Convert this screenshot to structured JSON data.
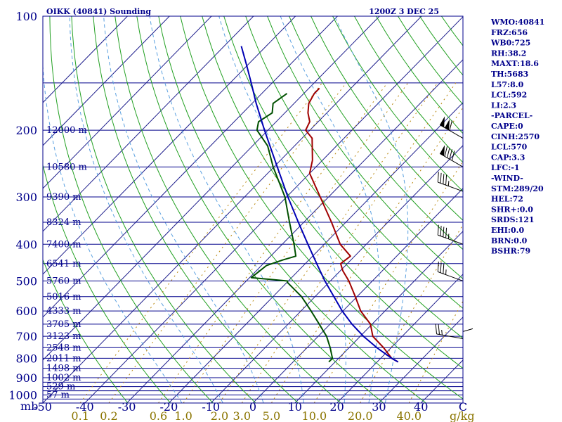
{
  "colors": {
    "frame": "#00008b",
    "isobar": "#00008b",
    "isotherm": "#1e1e8c",
    "dry_adiabat": "#22a022",
    "moist_adiabat": "#5aa0e0",
    "mixing_ratio": "#b8860b",
    "temperature": "#a00000",
    "dewpoint": "#005000",
    "parcel": "#0000b4",
    "wind": "#000000",
    "mixing_label": "#8b7500",
    "text": "#00008b"
  },
  "chart_data": {
    "type": "skew-t",
    "title": "OIKK (40841) Sounding",
    "datetime": "1200Z  3 DEC 25",
    "y_axis_unit": "mb",
    "pressure_range": [
      1050,
      100
    ],
    "pressure_tick_labels": [
      {
        "p": 100,
        "label": "100"
      },
      {
        "p": 200,
        "label": "200"
      },
      {
        "p": 300,
        "label": "300"
      },
      {
        "p": 400,
        "label": "400"
      },
      {
        "p": 500,
        "label": "500"
      },
      {
        "p": 600,
        "label": "600"
      },
      {
        "p": 700,
        "label": "700"
      },
      {
        "p": 800,
        "label": "800"
      },
      {
        "p": 900,
        "label": "900"
      },
      {
        "p": 1000,
        "label": "1000"
      }
    ],
    "isobars": [
      150,
      200,
      250,
      300,
      350,
      400,
      450,
      500,
      550,
      600,
      650,
      700,
      750,
      800,
      850,
      900,
      925,
      950,
      975,
      1000,
      1025
    ],
    "temperature_range_c": [
      -50,
      50
    ],
    "temperature_tick_labels": [
      -50,
      -40,
      -30,
      -20,
      -10,
      0,
      10,
      20,
      30,
      40,
      50
    ],
    "temperature_tick_texts": [
      "-50",
      "-40",
      "-30",
      "-20",
      "-10",
      "0",
      "10",
      "20",
      "30",
      "40",
      "C"
    ],
    "isotherm_start_temps_c": [
      -120,
      -110,
      -100,
      -90,
      -80,
      -70,
      -60,
      -50,
      -40,
      -30,
      -20,
      -10,
      0,
      10,
      20,
      30,
      40,
      50
    ],
    "dry_adiabat_thetas_k": [
      240,
      250,
      260,
      270,
      280,
      290,
      300,
      310,
      320,
      330,
      340,
      350,
      360,
      370,
      380,
      390,
      400,
      410,
      420,
      430,
      440,
      450,
      460,
      470,
      480,
      490,
      500
    ],
    "moist_adiabat_thetaw_c": [
      -20,
      -10,
      0,
      10,
      20,
      26,
      30
    ],
    "mixing_ratio_lines_gkg": [
      0.1,
      0.2,
      0.6,
      1.0,
      2.0,
      3.0,
      5.0,
      10.0,
      20.0,
      40.0
    ],
    "mixing_ratio_labels": [
      {
        "w": 0.1,
        "label": "0.1"
      },
      {
        "w": 0.2,
        "label": "0.2"
      },
      {
        "w": 0.6,
        "label": "0.6"
      },
      {
        "w": 1.0,
        "label": "1.0"
      },
      {
        "w": 2.0,
        "label": "2.0"
      },
      {
        "w": 3.0,
        "label": "3.0"
      },
      {
        "w": 5.0,
        "label": "5.0"
      },
      {
        "w": 10.0,
        "label": "10.0"
      },
      {
        "w": 20.0,
        "label": "20.0"
      },
      {
        "w": 40.0,
        "label": "40.0"
      }
    ],
    "mixing_ratio_unit": "g/kg",
    "height_labels": [
      {
        "p": 200,
        "text": "12000 m"
      },
      {
        "p": 250,
        "text": "10580 m"
      },
      {
        "p": 300,
        "text": "9390 m"
      },
      {
        "p": 350,
        "text": "8324 m"
      },
      {
        "p": 400,
        "text": "7400 m"
      },
      {
        "p": 450,
        "text": "6541 m"
      },
      {
        "p": 500,
        "text": "5760 m"
      },
      {
        "p": 550,
        "text": "5016 m"
      },
      {
        "p": 600,
        "text": "4333 m"
      },
      {
        "p": 650,
        "text": "3705 m"
      },
      {
        "p": 700,
        "text": "3123 m"
      },
      {
        "p": 750,
        "text": "2548 m"
      },
      {
        "p": 800,
        "text": "2011 m"
      },
      {
        "p": 850,
        "text": "1498 m"
      },
      {
        "p": 900,
        "text": "1002 m"
      },
      {
        "p": 950,
        "text": "529 m"
      },
      {
        "p": 1000,
        "text": "57 m"
      }
    ],
    "series": [
      {
        "name": "temperature",
        "points": [
          {
            "p": 818,
            "t": 25.0
          },
          {
            "p": 800,
            "t": 22.6
          },
          {
            "p": 750,
            "t": 18.2
          },
          {
            "p": 700,
            "t": 13.0
          },
          {
            "p": 650,
            "t": 9.6
          },
          {
            "p": 600,
            "t": 4.2
          },
          {
            "p": 550,
            "t": -0.4
          },
          {
            "p": 500,
            "t": -5.6
          },
          {
            "p": 470,
            "t": -9.4
          },
          {
            "p": 450,
            "t": -11.6
          },
          {
            "p": 430,
            "t": -11.0
          },
          {
            "p": 400,
            "t": -16.2
          },
          {
            "p": 350,
            "t": -23.4
          },
          {
            "p": 300,
            "t": -32.0
          },
          {
            "p": 260,
            "t": -40.0
          },
          {
            "p": 240,
            "t": -42.4
          },
          {
            "p": 210,
            "t": -47.6
          },
          {
            "p": 200,
            "t": -51.0
          },
          {
            "p": 190,
            "t": -52.0
          },
          {
            "p": 180,
            "t": -54.5
          },
          {
            "p": 170,
            "t": -56.5
          },
          {
            "p": 160,
            "t": -57.5
          },
          {
            "p": 155,
            "t": -57.5
          }
        ]
      },
      {
        "name": "dewpoint",
        "points": [
          {
            "p": 818,
            "t": 8.5
          },
          {
            "p": 800,
            "t": 8.5
          },
          {
            "p": 750,
            "t": 5.5
          },
          {
            "p": 700,
            "t": 2.0
          },
          {
            "p": 650,
            "t": -2.6
          },
          {
            "p": 600,
            "t": -7.6
          },
          {
            "p": 550,
            "t": -13.2
          },
          {
            "p": 505,
            "t": -19.8
          },
          {
            "p": 500,
            "t": -20.2
          },
          {
            "p": 490,
            "t": -29.6
          },
          {
            "p": 455,
            "t": -28.8
          },
          {
            "p": 440,
            "t": -26.2
          },
          {
            "p": 430,
            "t": -24.0
          },
          {
            "p": 400,
            "t": -27.2
          },
          {
            "p": 350,
            "t": -33.4
          },
          {
            "p": 300,
            "t": -40.4
          },
          {
            "p": 250,
            "t": -50.2
          },
          {
            "p": 220,
            "t": -56.4
          },
          {
            "p": 200,
            "t": -62.6
          },
          {
            "p": 190,
            "t": -64.2
          },
          {
            "p": 180,
            "t": -63.0
          },
          {
            "p": 170,
            "t": -65.0
          },
          {
            "p": 160,
            "t": -64.0
          }
        ]
      },
      {
        "name": "parcel",
        "points": [
          {
            "p": 818,
            "t": 25.0
          },
          {
            "p": 800,
            "t": 22.6
          },
          {
            "p": 750,
            "t": 16.6
          },
          {
            "p": 700,
            "t": 10.8
          },
          {
            "p": 650,
            "t": 5.2
          },
          {
            "p": 600,
            "t": -0.2
          },
          {
            "p": 550,
            "t": -5.5
          },
          {
            "p": 500,
            "t": -11.3
          },
          {
            "p": 450,
            "t": -17.3
          },
          {
            "p": 400,
            "t": -23.9
          },
          {
            "p": 350,
            "t": -31.3
          },
          {
            "p": 300,
            "t": -39.7
          },
          {
            "p": 250,
            "t": -49.2
          },
          {
            "p": 200,
            "t": -60.8
          },
          {
            "p": 170,
            "t": -69.0
          },
          {
            "p": 150,
            "t": -75.0
          },
          {
            "p": 135,
            "t": -80.1
          },
          {
            "p": 120,
            "t": -85.9
          }
        ]
      }
    ],
    "wind_barbs": [
      {
        "p": 210,
        "dir": 300,
        "kt": 110
      },
      {
        "p": 250,
        "dir": 300,
        "kt": 90
      },
      {
        "p": 290,
        "dir": 290,
        "kt": 45
      },
      {
        "p": 400,
        "dir": 290,
        "kt": 45
      },
      {
        "p": 500,
        "dir": 290,
        "kt": 35
      },
      {
        "p": 710,
        "dir": 280,
        "kt": 25
      },
      {
        "p": 800,
        "dir": 0,
        "kt": 10
      }
    ],
    "indices": [
      "WMO:40841",
      "FRZ:656",
      "WB0:725",
      "RH:38.2",
      "MAXT:18.6",
      "TH:5683",
      "L57:8.0",
      "LCL:592",
      "LI:2.3",
      "-PARCEL-",
      "CAPE:0",
      "CINH:2570",
      "LCL:570",
      "CAP:3.3",
      "LFC:-1",
      "-WIND-",
      "STM:289/20",
      "HEL:72",
      "SHR+:0.0",
      "SRDS:121",
      "EHI:0.0",
      "BRN:0.0",
      "BSHR:79"
    ]
  }
}
